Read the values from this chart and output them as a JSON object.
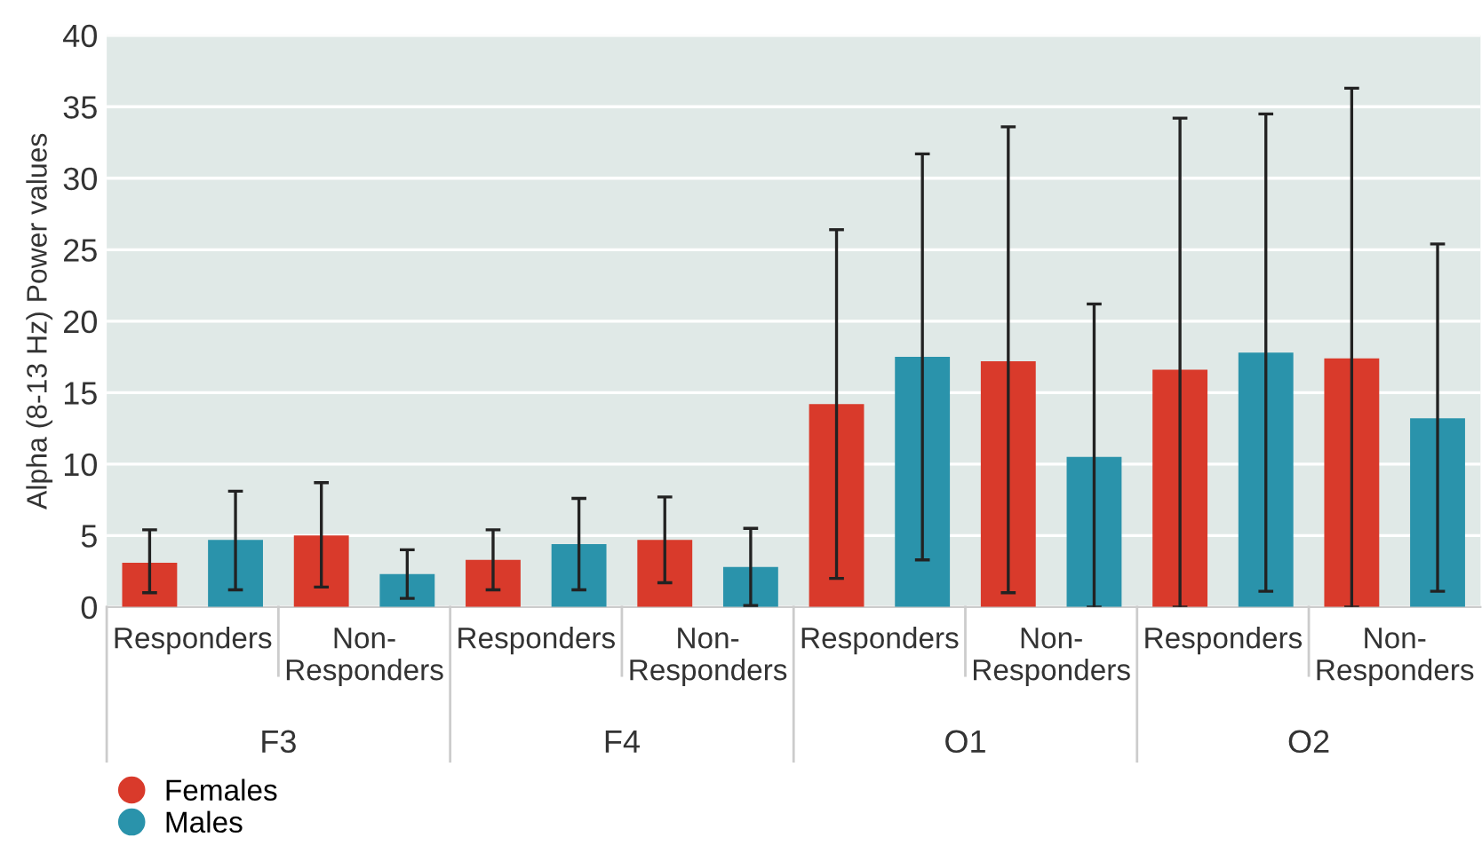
{
  "chart_data": {
    "type": "bar",
    "ylabel": "Alpha (8-13 Hz) Power values",
    "categories": [
      "Responders",
      "Non-\nResponders",
      "Responders",
      "Non-\nResponders",
      "Responders",
      "Non-\nResponders",
      "Responders",
      "Non-\nResponders"
    ],
    "annotations": [
      "F3",
      "F4",
      "O1",
      "O2"
    ],
    "series": [
      {
        "name": "Females",
        "color": "#d93a2b",
        "values": [
          3.1,
          5.0,
          3.3,
          4.7,
          14.2,
          17.2,
          16.6,
          17.4
        ],
        "errors": [
          [
            1.0,
            5.4
          ],
          [
            1.4,
            8.7
          ],
          [
            1.2,
            5.4
          ],
          [
            1.7,
            7.7
          ],
          [
            2.0,
            26.4
          ],
          [
            1.0,
            33.6
          ],
          [
            0,
            34.2
          ],
          [
            0,
            36.3
          ]
        ]
      },
      {
        "name": "Males",
        "color": "#2a93ab",
        "values": [
          4.7,
          2.3,
          4.4,
          2.8,
          17.5,
          10.5,
          17.8,
          13.2
        ],
        "errors": [
          [
            1.2,
            8.1
          ],
          [
            0.6,
            4.0
          ],
          [
            1.2,
            7.6
          ],
          [
            0.1,
            5.5
          ],
          [
            3.3,
            31.7
          ],
          [
            0,
            21.2
          ],
          [
            1.1,
            34.5
          ],
          [
            1.1,
            25.4
          ]
        ]
      }
    ],
    "ylim": [
      0,
      40
    ],
    "yticks": [
      0,
      5,
      10,
      15,
      20,
      25,
      30,
      35,
      40
    ],
    "grid": "y",
    "legend": "bottom left"
  }
}
